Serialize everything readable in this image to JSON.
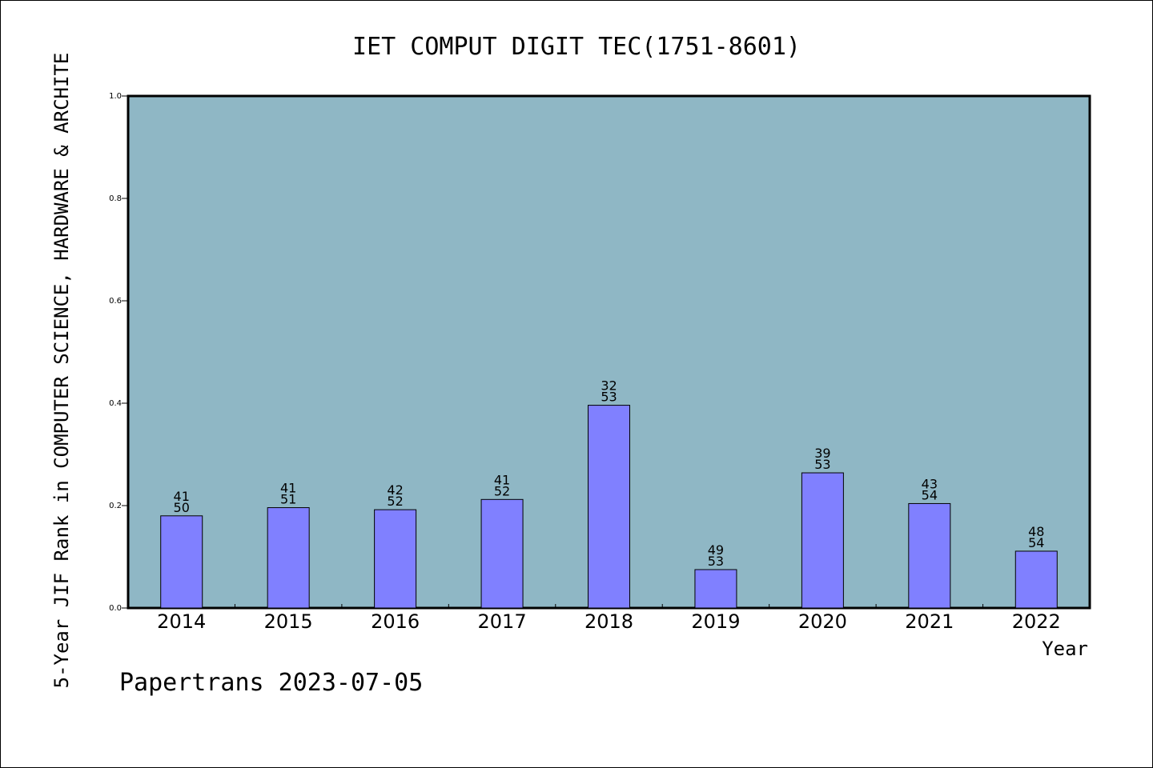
{
  "chart_data": {
    "type": "bar",
    "title": "IET COMPUT DIGIT TEC(1751-8601)",
    "ylabel": "5-Year JIF Rank in COMPUTER SCIENCE, HARDWARE & ARCHITE",
    "xlabel": "Year",
    "categories": [
      "2014",
      "2015",
      "2016",
      "2017",
      "2018",
      "2019",
      "2020",
      "2021",
      "2022"
    ],
    "values": [
      0.18,
      0.196,
      0.192,
      0.212,
      0.396,
      0.075,
      0.264,
      0.204,
      0.111
    ],
    "rank_labels": [
      {
        "rank": "41",
        "total": "50"
      },
      {
        "rank": "41",
        "total": "51"
      },
      {
        "rank": "42",
        "total": "52"
      },
      {
        "rank": "41",
        "total": "52"
      },
      {
        "rank": "32",
        "total": "53"
      },
      {
        "rank": "49",
        "total": "53"
      },
      {
        "rank": "39",
        "total": "53"
      },
      {
        "rank": "43",
        "total": "54"
      },
      {
        "rank": "48",
        "total": "54"
      }
    ],
    "ylim": [
      0,
      1.0
    ],
    "yticks": [
      "0.0",
      "0.2",
      "0.4",
      "0.6",
      "0.8",
      "1.0"
    ],
    "grid": false,
    "colors": {
      "plot_background": "#8fb7c5",
      "bar_fill": "#8080ff",
      "bar_stroke": "#000000"
    }
  },
  "footer": "Papertrans 2023-07-05"
}
